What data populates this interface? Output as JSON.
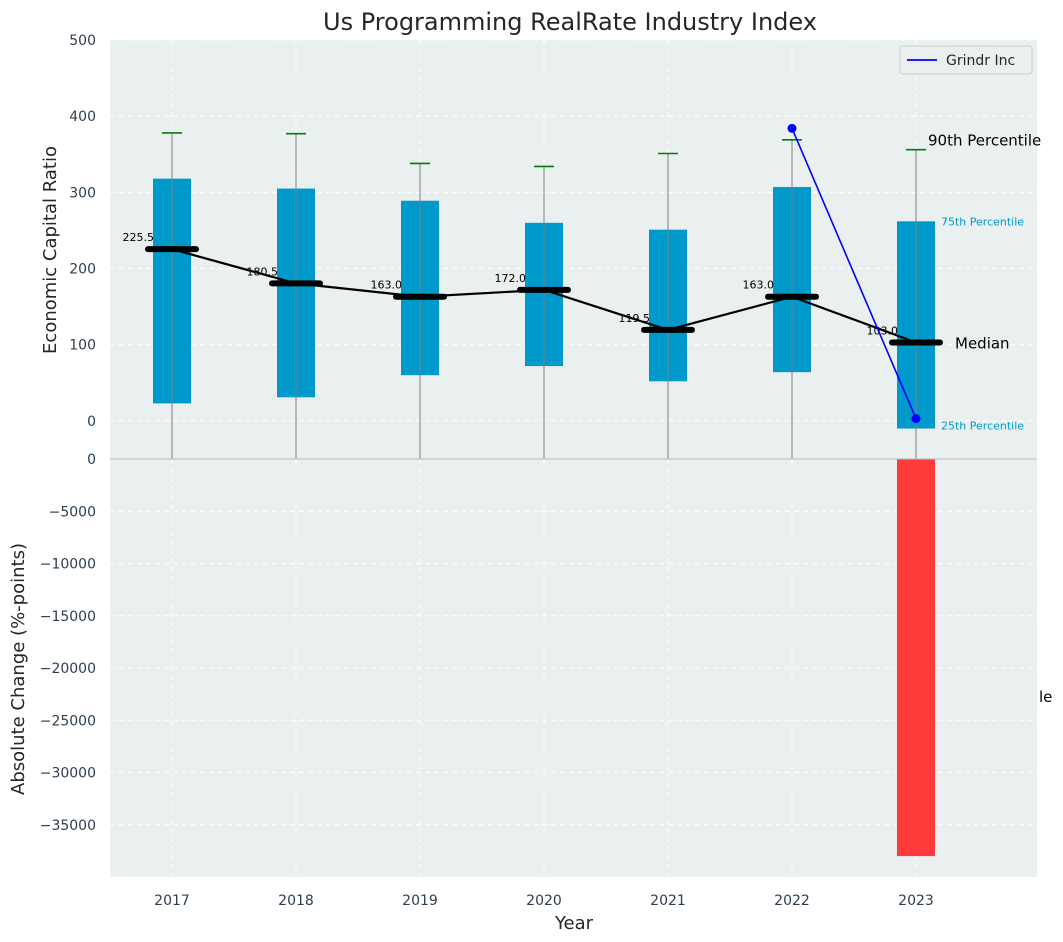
{
  "chart_data": {
    "type": "box-and-bar",
    "title": "Us Programming RealRate Industry Index",
    "xlabel": "Year",
    "categories": [
      "2017",
      "2018",
      "2019",
      "2020",
      "2021",
      "2022",
      "2023"
    ],
    "top_panel": {
      "ylabel": "Economic Capital Ratio",
      "ylim": [
        -50,
        500
      ],
      "yticks": [
        0,
        100,
        200,
        300,
        400,
        500
      ],
      "grid": true,
      "boxes": [
        {
          "year": "2017",
          "p25": 23,
          "p75": 318,
          "p90": 378,
          "median": 225.5,
          "median_label": "225.5"
        },
        {
          "year": "2018",
          "p25": 31,
          "p75": 305,
          "p90": 377,
          "median": 180.5,
          "median_label": "180.5"
        },
        {
          "year": "2019",
          "p25": 60,
          "p75": 289,
          "p90": 338,
          "median": 163.0,
          "median_label": "163.0"
        },
        {
          "year": "2020",
          "p25": 72,
          "p75": 260,
          "p90": 334,
          "median": 172.0,
          "median_label": "172.0"
        },
        {
          "year": "2021",
          "p25": 52,
          "p75": 251,
          "p90": 351,
          "median": 119.5,
          "median_label": "119.5"
        },
        {
          "year": "2022",
          "p25": 64,
          "p75": 307,
          "p90": 369,
          "median": 163.0,
          "median_label": "163.0"
        },
        {
          "year": "2023",
          "p25": -10,
          "p75": 262,
          "p90": 356,
          "median": 103.0,
          "median_label": "103.0"
        }
      ],
      "company_series": {
        "name": "Grindr Inc",
        "color": "#0000ff",
        "x": [
          "2022",
          "2023"
        ],
        "values": [
          384,
          3
        ]
      },
      "annotations": {
        "p90": "90th Percentile",
        "p75": "75th Percentile",
        "median": "Median",
        "p25": "25th Percentile"
      },
      "legend": {
        "entries": [
          "Grindr Inc"
        ],
        "placement": "top-right"
      }
    },
    "bottom_panel": {
      "ylabel": "Absolute Change (%-points)",
      "ylim": [
        -40000,
        0
      ],
      "yticks": [
        0,
        -5000,
        -10000,
        -15000,
        -20000,
        -25000,
        -30000,
        -35000
      ],
      "ytick_labels": [
        "0",
        "−5000",
        "−10000",
        "−15000",
        "−20000",
        "−25000",
        "−30000",
        "−35000"
      ],
      "bars": [
        {
          "year": "2023",
          "value": -38000
        }
      ],
      "overflow_label": "le",
      "grid": true
    },
    "colors": {
      "box": "#0099cc",
      "median": "#000000",
      "whisker_cap": "#008000",
      "whisker": "#808080",
      "negative_bar": "#ff3c3c",
      "panel_bg": "#eaeff0",
      "annot_box": "#0099cc"
    }
  }
}
